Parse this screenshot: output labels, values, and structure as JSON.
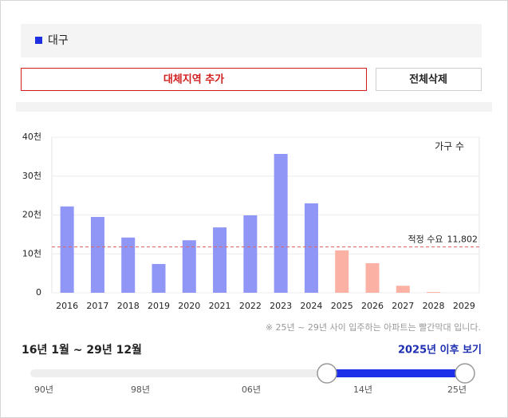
{
  "region": {
    "name": "대구"
  },
  "buttons": {
    "add": "대체지역 추가",
    "delete_all": "전체삭제"
  },
  "chart_data": {
    "type": "bar",
    "y_label": "가구 수",
    "categories": [
      "2016",
      "2017",
      "2018",
      "2019",
      "2020",
      "2021",
      "2022",
      "2023",
      "2024",
      "2025",
      "2026",
      "2027",
      "2028",
      "2029"
    ],
    "values": [
      22200,
      19500,
      14200,
      7400,
      13500,
      16800,
      19900,
      35700,
      23000,
      10900,
      7600,
      1800,
      200,
      0
    ],
    "colors": [
      "#8f96f6",
      "#8f96f6",
      "#8f96f6",
      "#8f96f6",
      "#8f96f6",
      "#8f96f6",
      "#8f96f6",
      "#8f96f6",
      "#8f96f6",
      "#fbb2a4",
      "#fbb2a4",
      "#fbb2a4",
      "#fbb2a4",
      "#fbb2a4"
    ],
    "ylim": [
      0,
      40000
    ],
    "yticks": [
      0,
      {
        "value": 10000,
        "label": "10천"
      },
      {
        "value": 20000,
        "label": "20천"
      },
      {
        "value": 30000,
        "label": "30천"
      },
      {
        "value": 40000,
        "label": "40천"
      }
    ],
    "grid": true,
    "reference_line": {
      "label": "적정 수요",
      "value": 11802,
      "value_label": "11,802",
      "color": "#e06666"
    }
  },
  "note": "※ 25년 ~ 29년 사이 입주하는 아파트는 빨간막대 입니다.",
  "period": "16년 1월 ~ 29년 12월",
  "link": "2025년 이후 보기",
  "slider_labels": [
    "90년",
    "98년",
    "06년",
    "14년",
    "25년"
  ]
}
